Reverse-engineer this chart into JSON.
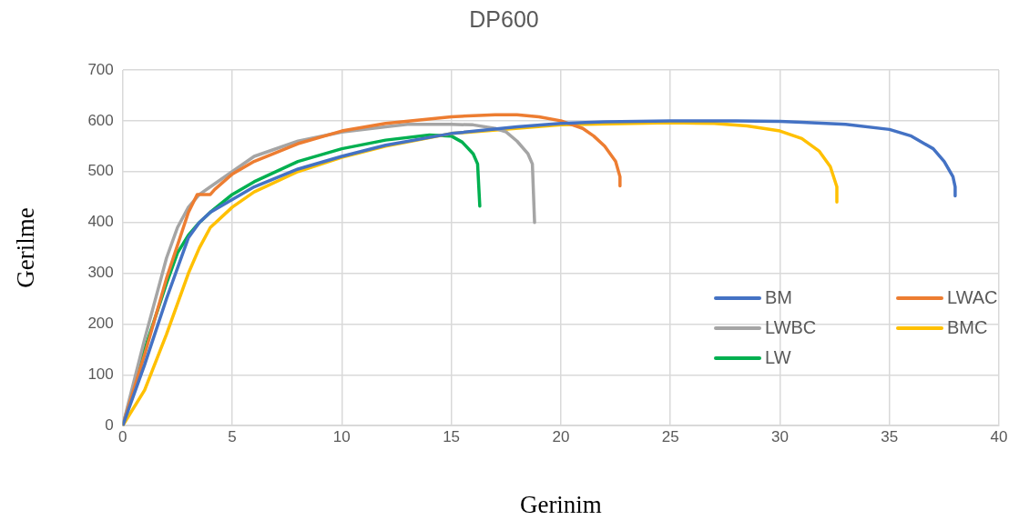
{
  "chart_data": {
    "type": "line",
    "title": "DP600",
    "xlabel": "Gerinim",
    "ylabel": "Gerilme",
    "xlim": [
      0,
      40
    ],
    "xticks": [
      0,
      5,
      10,
      15,
      20,
      25,
      30,
      35,
      40
    ],
    "ylim": [
      0,
      700
    ],
    "yticks": [
      0,
      100,
      200,
      300,
      400,
      500,
      600,
      700
    ],
    "grid": true,
    "legend": "bottom right",
    "marker": "none",
    "line_style": "solid",
    "series": [
      {
        "name": "BM",
        "color": "#4472c4",
        "x": [
          0,
          1,
          2,
          3,
          3.5,
          4,
          5,
          6,
          8,
          10,
          12,
          15,
          18,
          20,
          22,
          25,
          28,
          30,
          31,
          33,
          35,
          36,
          37,
          37.5,
          37.9,
          38,
          38
        ],
        "values": [
          0,
          120,
          250,
          370,
          400,
          420,
          445,
          470,
          505,
          530,
          552,
          575,
          588,
          595,
          598,
          600,
          600,
          599,
          597,
          593,
          583,
          570,
          545,
          520,
          490,
          470,
          452
        ]
      },
      {
        "name": "LWAC",
        "color": "#ed7d31",
        "x": [
          0,
          1,
          2,
          3,
          3.4,
          3.8,
          4,
          4.2,
          5,
          6,
          8,
          10,
          12,
          15,
          17,
          18,
          19,
          20,
          21,
          21.5,
          22,
          22.5,
          22.7,
          22.7
        ],
        "values": [
          0,
          140,
          290,
          420,
          455,
          455,
          455,
          465,
          495,
          520,
          555,
          580,
          595,
          608,
          612,
          612,
          608,
          600,
          585,
          570,
          550,
          520,
          490,
          472
        ]
      },
      {
        "name": "LWBC",
        "color": "#a5a5a5",
        "x": [
          0,
          1,
          2,
          2.5,
          3,
          3.5,
          4,
          5,
          6,
          8,
          10,
          12,
          13,
          15,
          16,
          17,
          17.5,
          18,
          18.5,
          18.7,
          18.8
        ],
        "values": [
          0,
          170,
          330,
          390,
          430,
          455,
          470,
          500,
          530,
          560,
          578,
          588,
          593,
          593,
          592,
          585,
          578,
          560,
          535,
          515,
          400
        ]
      },
      {
        "name": "BMC",
        "color": "#ffc000",
        "x": [
          0,
          1,
          2,
          3,
          3.5,
          4,
          5,
          6,
          8,
          10,
          12,
          15,
          20,
          25,
          27,
          28.5,
          30,
          31,
          31.8,
          32.3,
          32.6,
          32.6
        ],
        "values": [
          0,
          70,
          180,
          300,
          350,
          390,
          430,
          460,
          500,
          528,
          550,
          575,
          592,
          596,
          595,
          590,
          580,
          565,
          540,
          510,
          470,
          440
        ]
      },
      {
        "name": "LW",
        "color": "#00b050",
        "x": [
          0,
          1,
          2,
          2.5,
          3,
          3.5,
          4,
          5,
          6,
          8,
          10,
          12,
          14,
          15,
          15.5,
          16,
          16.2,
          16.3
        ],
        "values": [
          0,
          150,
          280,
          340,
          375,
          400,
          420,
          455,
          480,
          520,
          545,
          562,
          572,
          570,
          558,
          535,
          515,
          432
        ]
      }
    ]
  }
}
